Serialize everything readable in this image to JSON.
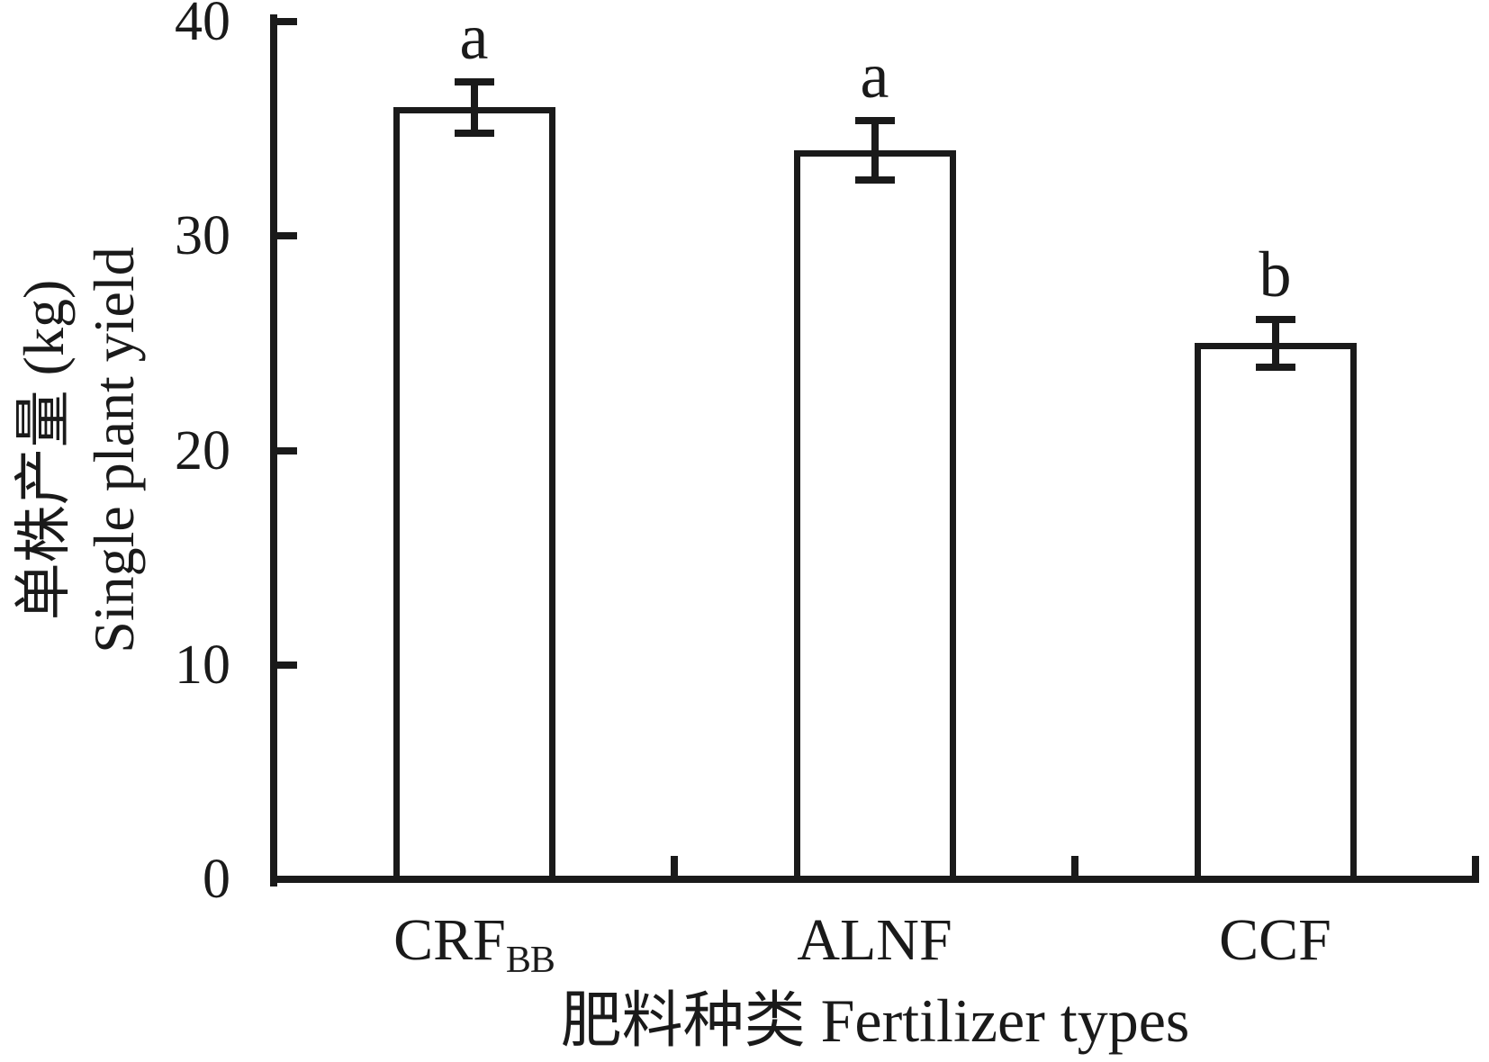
{
  "chart_data": {
    "type": "bar",
    "title": "",
    "categories": [
      {
        "label": "CRF",
        "sub": "BB"
      },
      {
        "label": "ALNF",
        "sub": ""
      },
      {
        "label": "CCF",
        "sub": ""
      }
    ],
    "values": [
      36,
      34,
      25
    ],
    "errors": [
      1.2,
      1.4,
      1.1
    ],
    "sig_letters": [
      "a",
      "a",
      "b"
    ],
    "xlabel": "肥料种类 Fertilizer types",
    "ylabel_zh": "单株产量 (kg)",
    "ylabel_en": "Single plant yield",
    "ylim": [
      0,
      40
    ],
    "yticks": [
      0,
      10,
      20,
      30,
      40
    ],
    "grid": false,
    "legend": "none",
    "bar_fill": "#ffffff",
    "line_color": "#1a1a1a"
  }
}
